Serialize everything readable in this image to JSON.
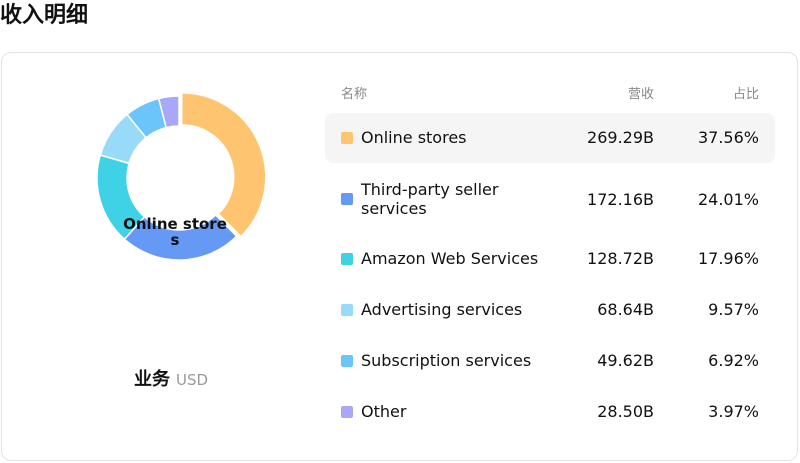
{
  "header": {
    "title": "收入明细"
  },
  "breakdown": {
    "category_label": "业务",
    "currency": "USD",
    "center_label": "Online stores",
    "table": {
      "headers": {
        "name": "名称",
        "revenue": "营收",
        "share": "占比"
      },
      "rows": [
        {
          "name": "Online stores",
          "revenue": "269.29B",
          "share": "37.56%",
          "color": "#FEC46F"
        },
        {
          "name": "Third-party seller services",
          "revenue": "172.16B",
          "share": "24.01%",
          "color": "#6699F6"
        },
        {
          "name": "Amazon Web Services",
          "revenue": "128.72B",
          "share": "17.96%",
          "color": "#3FD2E6"
        },
        {
          "name": "Advertising services",
          "revenue": "68.64B",
          "share": "9.57%",
          "color": "#98DBF9"
        },
        {
          "name": "Subscription services",
          "revenue": "49.62B",
          "share": "6.92%",
          "color": "#6CC5FA"
        },
        {
          "name": "Other",
          "revenue": "28.50B",
          "share": "3.97%",
          "color": "#A8A7F8"
        }
      ]
    }
  },
  "chart_data": {
    "type": "pie",
    "variant": "donut",
    "categories": [
      "Online stores",
      "Third-party seller services",
      "Amazon Web Services",
      "Advertising services",
      "Subscription services",
      "Other"
    ],
    "values": [
      269.29,
      172.16,
      128.72,
      68.64,
      49.62,
      28.5
    ],
    "shares_percent": [
      37.56,
      24.01,
      17.96,
      9.57,
      6.92,
      3.97
    ],
    "colors": [
      "#FEC46F",
      "#6699F6",
      "#3FD2E6",
      "#98DBF9",
      "#6CC5FA",
      "#A8A7F8"
    ],
    "highlighted": "Online stores",
    "legend_placement": "right"
  }
}
